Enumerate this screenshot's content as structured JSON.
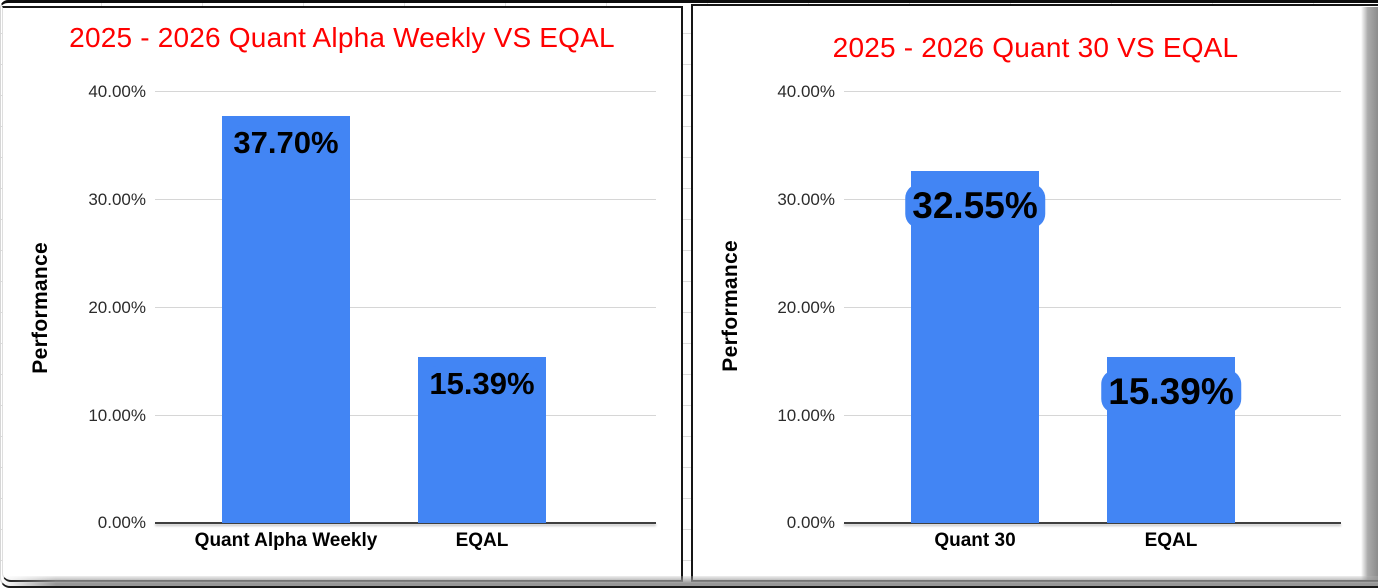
{
  "frame": {
    "background": "#ffffff",
    "border_color": "#161616",
    "shadow_color": "#979797",
    "sheet_gridline_color": "#dcdcdc"
  },
  "chart_data": [
    {
      "type": "bar",
      "title": "2025 - 2026 Quant Alpha Weekly VS EQAL",
      "title_color": "#ff0000",
      "categories": [
        "Quant Alpha Weekly",
        "EQAL"
      ],
      "values": [
        37.7,
        15.39
      ],
      "data_labels": [
        "37.70%",
        "15.39%"
      ],
      "xlabel": "",
      "ylabel": "Performance",
      "ylim": [
        0,
        40
      ],
      "yticks": [
        "0.00%",
        "10.00%",
        "20.00%",
        "30.00%",
        "40.00%"
      ],
      "grid": true,
      "legend": false,
      "bar_color": "#4285f4",
      "gridline_color": "#d6d6d6",
      "label_text_color": "#000000"
    },
    {
      "type": "bar",
      "title": "2025 - 2026 Quant 30 VS EQAL",
      "title_color": "#ff0000",
      "categories": [
        "Quant 30",
        "EQAL"
      ],
      "values": [
        32.55,
        15.39
      ],
      "data_labels": [
        "32.55%",
        "15.39%"
      ],
      "xlabel": "",
      "ylabel": "Performance",
      "ylim": [
        0,
        40
      ],
      "yticks": [
        "0.00%",
        "10.00%",
        "20.00%",
        "30.00%",
        "40.00%"
      ],
      "grid": true,
      "legend": false,
      "bar_color": "#4285f4",
      "gridline_color": "#d6d6d6",
      "label_text_color": "#000000"
    }
  ]
}
